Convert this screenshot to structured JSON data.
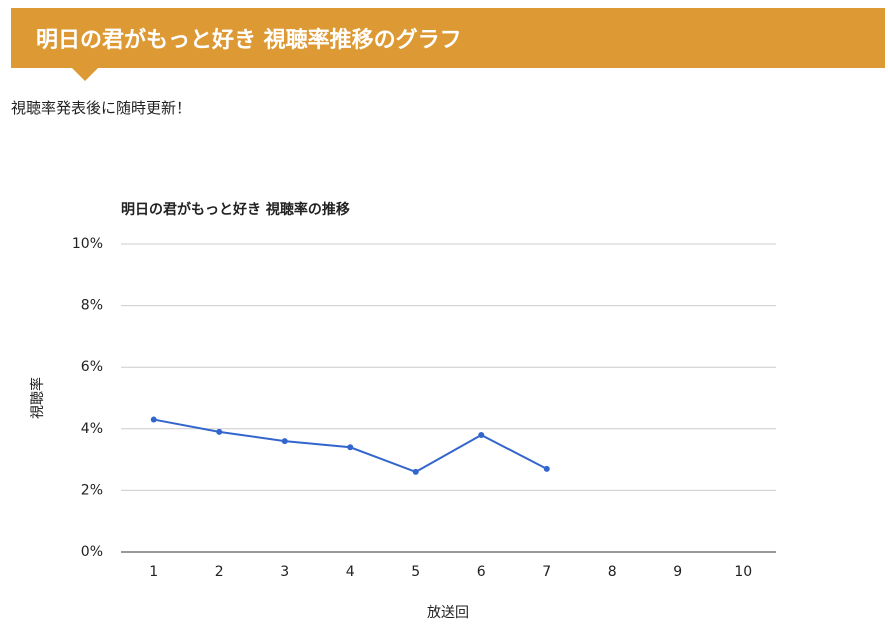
{
  "header": {
    "title": "明日の君がもっと好き 視聴率推移のグラフ"
  },
  "note": "視聴率発表後に随時更新！",
  "chart_data": {
    "type": "line",
    "title": "明日の君がもっと好き 視聴率の推移",
    "x_label": "放送回",
    "y_label": "視聴率",
    "categories": [
      "1",
      "2",
      "3",
      "4",
      "5",
      "6",
      "7",
      "8",
      "9",
      "10"
    ],
    "series": [
      {
        "name": "視聴率",
        "color": "#3366cc",
        "values": [
          4.3,
          3.9,
          3.6,
          3.4,
          2.6,
          3.8,
          2.7,
          null,
          null,
          null
        ]
      }
    ],
    "ylim": [
      0,
      10
    ],
    "yticks": [
      {
        "value": 0,
        "label": "0%"
      },
      {
        "value": 2,
        "label": "2%"
      },
      {
        "value": 4,
        "label": "4%"
      },
      {
        "value": 6,
        "label": "6%"
      },
      {
        "value": 8,
        "label": "8%"
      },
      {
        "value": 10,
        "label": "10%"
      }
    ],
    "grid": true,
    "legend": false
  }
}
